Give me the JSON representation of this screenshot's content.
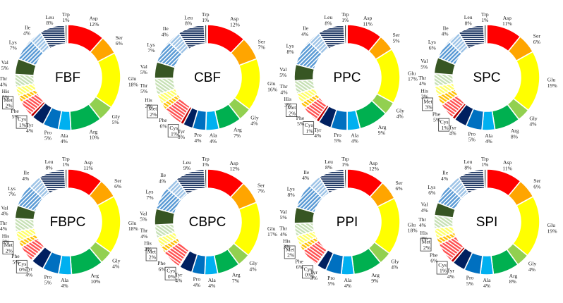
{
  "chart_data": [
    {
      "type": "pie",
      "title": "FBF",
      "categories": [
        "Asp",
        "Ser",
        "Glu",
        "Gly",
        "Arg",
        "Ala",
        "Pro",
        "Tyr",
        "Cys",
        "Phe",
        "Met",
        "His",
        "Thr",
        "Val",
        "Lys",
        "Ile",
        "Leu",
        "Trp"
      ],
      "labels": [
        "12%",
        "6%",
        "18%",
        "5%",
        "10%",
        "4%",
        "5%",
        "4%",
        "1%",
        "5%",
        "2%",
        "3%",
        "4%",
        "5%",
        "7%",
        "4%",
        "8%",
        "1%"
      ]
    },
    {
      "type": "pie",
      "title": "CBF",
      "categories": [
        "Asp",
        "Ser",
        "Glu",
        "Gly",
        "Arg",
        "Ala",
        "Pro",
        "Tyr",
        "Cys",
        "Phe",
        "Met",
        "His",
        "Thr",
        "Val",
        "Lys",
        "Ile",
        "Leu",
        "Trp"
      ],
      "labels": [
        "12%",
        "7%",
        "16%",
        "4%",
        "7%",
        "4%",
        "4%",
        "3%",
        "1%",
        "6%",
        "2%",
        "3%",
        "5%",
        "5%",
        "7%",
        "4%",
        "8%",
        "1%"
      ]
    },
    {
      "type": "pie",
      "title": "PPC",
      "categories": [
        "Asp",
        "Ser",
        "Glu",
        "Gly",
        "Arg",
        "Ala",
        "Pro",
        "Tyr",
        "Cys",
        "Phe",
        "Met",
        "His",
        "Thr",
        "Val",
        "Lys",
        "Ile",
        "Leu",
        "Trp"
      ],
      "labels": [
        "11%",
        "5%",
        "17%",
        "4%",
        "9%",
        "4%",
        "5%",
        "4%",
        "1%",
        "5%",
        "2%",
        "3%",
        "4%",
        "5%",
        "8%",
        "4%",
        "8%",
        "1%"
      ]
    },
    {
      "type": "pie",
      "title": "SPC",
      "categories": [
        "Asp",
        "Ser",
        "Glu",
        "Gly",
        "Arg",
        "Ala",
        "Pro",
        "Tyr",
        "Cys",
        "Phe",
        "Met",
        "His",
        "Thr",
        "Val",
        "Lys",
        "Ile",
        "Leu",
        "Trp"
      ],
      "labels": [
        "11%",
        "6%",
        "19%",
        "4%",
        "8%",
        "4%",
        "5%",
        "4%",
        "1%",
        "5%",
        "3%",
        "3%",
        "4%",
        "5%",
        "6%",
        "4%",
        "8%",
        "1%"
      ]
    },
    {
      "type": "pie",
      "title": "FBPC",
      "categories": [
        "Asp",
        "Ser",
        "Glu",
        "Gly",
        "Arg",
        "Ala",
        "Pro",
        "Tyr",
        "Cys",
        "Phe",
        "Met",
        "His",
        "Thr",
        "Val",
        "Lys",
        "Ile",
        "Leu",
        "Trp"
      ],
      "labels": [
        "11%",
        "6%",
        "18%",
        "4%",
        "10%",
        "4%",
        "5%",
        "4%",
        "0%",
        "5%",
        "2%",
        "3%",
        "4%",
        "4%",
        "7%",
        "4%",
        "8%",
        "1%"
      ]
    },
    {
      "type": "pie",
      "title": "CBPC",
      "categories": [
        "Asp",
        "Ser",
        "Glu",
        "Gly",
        "Arg",
        "Ala",
        "Pro",
        "Tyr",
        "Cys",
        "Phe",
        "Met",
        "His",
        "Thr",
        "Val",
        "Lys",
        "Ile",
        "Leu",
        "Trp"
      ],
      "labels": [
        "12%",
        "7%",
        "17%",
        "4%",
        "7%",
        "4%",
        "4%",
        "4%",
        "0%",
        "6%",
        "2%",
        "3%",
        "4%",
        "5%",
        "7%",
        "4%",
        "9%",
        "1%"
      ]
    },
    {
      "type": "pie",
      "title": "PPI",
      "categories": [
        "Asp",
        "Ser",
        "Glu",
        "Gly",
        "Arg",
        "Ala",
        "Pro",
        "Tyr",
        "Cys",
        "Phe",
        "Met",
        "His",
        "Thr",
        "Val",
        "Lys",
        "Ile",
        "Leu",
        "Trp"
      ],
      "labels": [
        "12%",
        "6%",
        "18%",
        "4%",
        "9%",
        "4%",
        "5%",
        "3%",
        "0%",
        "6%",
        "2%",
        "3%",
        "4%",
        "5%",
        "8%",
        "4%",
        "8%",
        "1%"
      ]
    },
    {
      "type": "pie",
      "title": "SPI",
      "categories": [
        "Asp",
        "Ser",
        "Glu",
        "Gly",
        "Arg",
        "Ala",
        "Pro",
        "Tyr",
        "Cys",
        "Phe",
        "Met",
        "His",
        "Thr",
        "Val",
        "Lys",
        "Ile",
        "Leu",
        "Trp"
      ],
      "labels": [
        "11%",
        "6%",
        "19%",
        "4%",
        "8%",
        "4%",
        "5%",
        "4%",
        "1%",
        "6%",
        "2%",
        "3%",
        "4%",
        "4%",
        "6%",
        "4%",
        "8%",
        "1%"
      ]
    }
  ],
  "colors": {
    "Asp": "#ff0000",
    "Ser": "#ffa500",
    "Glu": "#ffff00",
    "Gly": "#92d050",
    "Arg": "#00b050",
    "Ala": "#00b0f0",
    "Pro": "#0070c0",
    "Tyr": "#002060",
    "Cys": "#c00000",
    "Phe": "#ff5050",
    "Met": "#ffc000",
    "His": "#ffff66",
    "Thr": "#c6e0b4",
    "Val": "#375623",
    "Lys": "#5b9bd5",
    "Ile": "#9dc3e6",
    "Leu": "#203864",
    "Trp": "#7f7f7f"
  }
}
